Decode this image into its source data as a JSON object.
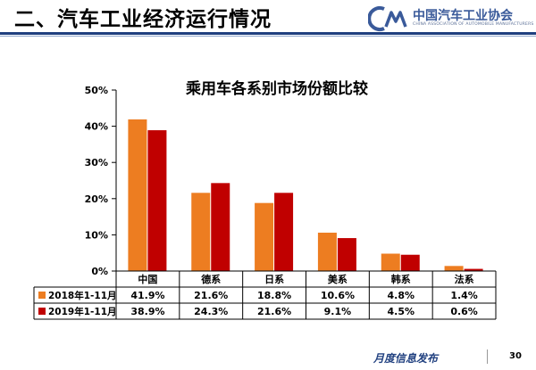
{
  "header": {
    "title": "二、汽车工业经济运行情况",
    "logo_text": "中国汽车工业协会",
    "logo_subtext": "CHINA ASSOCIATION OF AUTOMOBILE MANUFACTURERS"
  },
  "chart_data": {
    "type": "bar",
    "title": "乘用车各系别市场份额比较",
    "categories": [
      "中国",
      "德系",
      "日系",
      "美系",
      "韩系",
      "法系"
    ],
    "series": [
      {
        "name": "2018年1-11月",
        "values": [
          41.9,
          21.6,
          18.8,
          10.6,
          4.8,
          1.4
        ],
        "labels": [
          "41.9%",
          "21.6%",
          "18.8%",
          "10.6%",
          "4.8%",
          "1.4%"
        ],
        "color": "#ed7d21"
      },
      {
        "name": "2019年1-11月",
        "values": [
          38.9,
          24.3,
          21.6,
          9.1,
          4.5,
          0.6
        ],
        "labels": [
          "38.9%",
          "24.3%",
          "21.6%",
          "9.1%",
          "4.5%",
          "0.6%"
        ],
        "color": "#c00000"
      }
    ],
    "y_ticks": [
      "0%",
      "10%",
      "20%",
      "30%",
      "40%",
      "50%"
    ],
    "ylim": [
      0,
      50
    ],
    "xlabel": "",
    "ylabel": "",
    "grid": false,
    "legend": "data-table"
  },
  "footer": {
    "text": "月度信息发布",
    "page": "30"
  }
}
